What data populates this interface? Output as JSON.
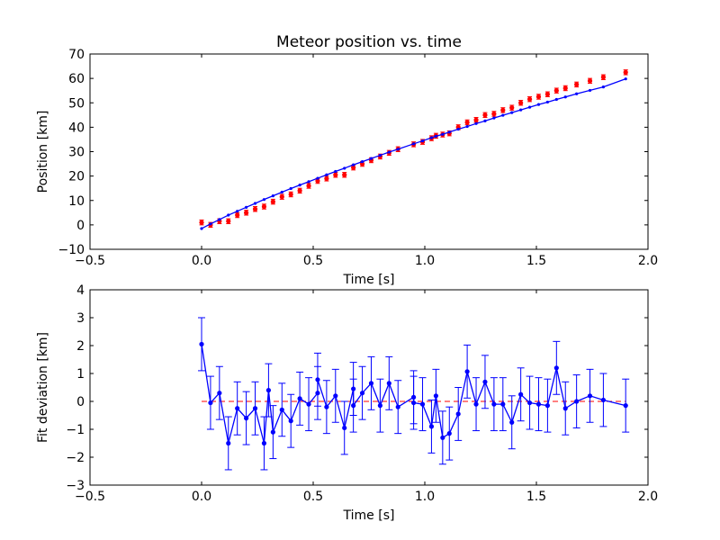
{
  "chart_data": [
    {
      "type": "scatter",
      "title": "Meteor position vs. time",
      "xlabel": "Time [s]",
      "ylabel": "Position [km]",
      "xlim": [
        -0.5,
        2.0
      ],
      "ylim": [
        -10,
        70
      ],
      "xticks": [
        -0.5,
        0.0,
        0.5,
        1.0,
        1.5,
        2.0
      ],
      "xtick_labels": [
        "−0.5",
        "0.0",
        "0.5",
        "1.0",
        "1.5",
        "2.0"
      ],
      "yticks": [
        -10,
        0,
        10,
        20,
        30,
        40,
        50,
        60,
        70
      ],
      "ytick_labels": [
        "−10",
        "0",
        "10",
        "20",
        "30",
        "40",
        "50",
        "60",
        "70"
      ],
      "grid": false,
      "colors": {
        "data": "#ff0000",
        "fit": "#0000ff"
      },
      "series": [
        {
          "kind": "errorbar",
          "x": [
            0.0,
            0.04,
            0.08,
            0.12,
            0.16,
            0.2,
            0.24,
            0.28,
            0.32,
            0.36,
            0.4,
            0.44,
            0.48,
            0.52,
            0.56,
            0.6,
            0.64,
            0.68,
            0.72,
            0.76,
            0.8,
            0.84,
            0.88,
            0.95,
            0.99,
            1.03,
            1.05,
            1.08,
            1.11,
            1.15,
            1.19,
            1.23,
            1.27,
            1.31,
            1.35,
            1.39,
            1.43,
            1.47,
            1.51,
            1.55,
            1.59,
            1.63,
            1.68,
            1.74,
            1.8,
            1.9
          ],
          "y": [
            1.0,
            0.0,
            1.5,
            1.5,
            4.0,
            5.0,
            6.5,
            7.5,
            9.5,
            11.5,
            12.5,
            14.0,
            16.0,
            18.0,
            19.0,
            20.5,
            20.5,
            23.5,
            25.0,
            26.5,
            28.0,
            29.5,
            31.0,
            33.0,
            34.0,
            35.5,
            36.5,
            37.0,
            37.5,
            40.0,
            42.0,
            43.0,
            45.0,
            45.5,
            47.0,
            48.0,
            50.0,
            51.5,
            52.5,
            53.5,
            55.0,
            56.0,
            57.5,
            59.0,
            60.5,
            62.5
          ],
          "yerr": 1.0
        },
        {
          "kind": "line",
          "x": [
            0.0,
            0.04,
            0.08,
            0.12,
            0.16,
            0.2,
            0.24,
            0.28,
            0.32,
            0.36,
            0.4,
            0.44,
            0.48,
            0.52,
            0.56,
            0.6,
            0.64,
            0.68,
            0.72,
            0.76,
            0.8,
            0.84,
            0.88,
            0.95,
            0.99,
            1.03,
            1.05,
            1.08,
            1.11,
            1.15,
            1.19,
            1.23,
            1.27,
            1.31,
            1.35,
            1.39,
            1.43,
            1.47,
            1.51,
            1.55,
            1.59,
            1.63,
            1.68,
            1.74,
            1.8,
            1.9
          ],
          "y": [
            -1.5,
            0.4,
            2.2,
            4.0,
            5.6,
            7.2,
            8.8,
            10.4,
            11.9,
            13.4,
            14.9,
            16.3,
            17.7,
            19.1,
            20.5,
            21.9,
            23.2,
            24.6,
            25.9,
            27.2,
            28.5,
            29.8,
            31.0,
            33.2,
            34.4,
            35.7,
            36.3,
            37.1,
            38.0,
            39.2,
            40.3,
            41.5,
            42.6,
            43.8,
            44.9,
            46.0,
            47.1,
            48.2,
            49.3,
            50.3,
            51.4,
            52.4,
            53.7,
            55.1,
            56.5,
            59.8
          ]
        }
      ]
    },
    {
      "type": "line",
      "title": "",
      "xlabel": "Time [s]",
      "ylabel": "Fit deviation [km]",
      "xlim": [
        -0.5,
        2.0
      ],
      "ylim": [
        -3,
        4
      ],
      "xticks": [
        -0.5,
        0.0,
        0.5,
        1.0,
        1.5,
        2.0
      ],
      "xtick_labels": [
        "−0.5",
        "0.0",
        "0.5",
        "1.0",
        "1.5",
        "2.0"
      ],
      "yticks": [
        -3,
        -2,
        -1,
        0,
        1,
        2,
        3,
        4
      ],
      "ytick_labels": [
        "−3",
        "−2",
        "−1",
        "0",
        "1",
        "2",
        "3",
        "4"
      ],
      "grid": false,
      "reference_line": {
        "y": 0,
        "style": "dashed",
        "color": "#ff0000"
      },
      "colors": {
        "series": "#0000ff"
      },
      "series": [
        {
          "kind": "errorbar-line",
          "x": [
            0.0,
            0.04,
            0.08,
            0.12,
            0.16,
            0.2,
            0.24,
            0.28,
            0.3,
            0.32,
            0.36,
            0.4,
            0.44,
            0.48,
            0.52,
            0.52,
            0.56,
            0.6,
            0.64,
            0.68,
            0.68,
            0.72,
            0.76,
            0.8,
            0.84,
            0.88,
            0.95,
            0.95,
            0.99,
            1.03,
            1.05,
            1.08,
            1.11,
            1.15,
            1.19,
            1.23,
            1.27,
            1.31,
            1.35,
            1.39,
            1.43,
            1.47,
            1.51,
            1.55,
            1.59,
            1.63,
            1.68,
            1.74,
            1.8,
            1.9
          ],
          "y": [
            2.05,
            -0.05,
            0.3,
            -1.5,
            -0.25,
            -0.6,
            -0.25,
            -1.5,
            0.4,
            -1.1,
            -0.3,
            -0.7,
            0.1,
            -0.1,
            0.3,
            0.78,
            -0.2,
            0.2,
            -0.95,
            0.45,
            -0.15,
            0.3,
            0.65,
            -0.15,
            0.65,
            -0.2,
            0.15,
            -0.05,
            -0.1,
            -0.9,
            0.2,
            -1.3,
            -1.15,
            -0.45,
            1.07,
            -0.1,
            0.7,
            -0.1,
            -0.1,
            -0.75,
            0.25,
            -0.05,
            -0.1,
            -0.15,
            1.2,
            -0.25,
            0.0,
            0.2,
            0.05,
            -0.15
          ],
          "yerr": 0.95
        }
      ]
    }
  ]
}
